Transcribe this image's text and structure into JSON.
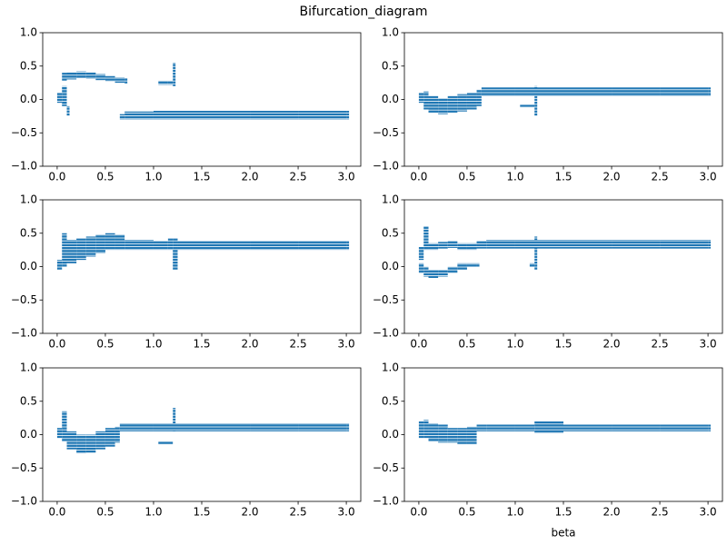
{
  "title": "Bifurcation_diagram",
  "chart_data": [
    {
      "type": "band",
      "color": "#1f77b4",
      "xlim": [
        -0.15,
        3.15
      ],
      "ylim": [
        -1,
        1
      ],
      "xticks": [
        {
          "value": 0,
          "label": "0.0"
        },
        {
          "value": 0.5,
          "label": "0.5"
        },
        {
          "value": 1,
          "label": "1.0"
        },
        {
          "value": 1.5,
          "label": "1.5"
        },
        {
          "value": 2,
          "label": "2.0"
        },
        {
          "value": 2.5,
          "label": "2.5"
        },
        {
          "value": 3,
          "label": "3.0"
        }
      ],
      "yticks": [
        {
          "value": -1,
          "label": "−1.0"
        },
        {
          "value": -0.5,
          "label": "−0.5"
        },
        {
          "value": 0,
          "label": "0.0"
        },
        {
          "value": 0.5,
          "label": "0.5"
        },
        {
          "value": 1,
          "label": "1.0"
        }
      ],
      "bands": [
        {
          "x": [
            0,
            0.05,
            0.1
          ],
          "low": [
            -0.05,
            -0.1,
            -0.25
          ],
          "high": [
            0.1,
            0.2,
            -0.1
          ]
        },
        {
          "x": [
            0.05,
            0.1,
            0.2,
            0.3,
            0.4,
            0.5,
            0.6,
            0.7
          ],
          "low": [
            0.28,
            0.3,
            0.32,
            0.31,
            0.29,
            0.27,
            0.25,
            0.24
          ],
          "high": [
            0.4,
            0.41,
            0.42,
            0.41,
            0.38,
            0.35,
            0.33,
            0.32
          ]
        },
        {
          "x": [
            0.65,
            0.7,
            1,
            1.5,
            2,
            2.5,
            3
          ],
          "low": [
            -0.3,
            -0.3,
            -0.3,
            -0.3,
            -0.3,
            -0.3,
            -0.3
          ],
          "high": [
            -0.22,
            -0.18,
            -0.17,
            -0.17,
            -0.17,
            -0.17,
            -0.17
          ]
        },
        {
          "x": [
            1.05,
            1.15,
            1.2
          ],
          "low": [
            0.22,
            0.22,
            0.2
          ],
          "high": [
            0.28,
            0.28,
            0.55
          ]
        }
      ]
    },
    {
      "type": "band",
      "color": "#1f77b4",
      "xlim": [
        -0.15,
        3.15
      ],
      "ylim": [
        -1,
        1
      ],
      "xticks": [
        {
          "value": 0,
          "label": "0.0"
        },
        {
          "value": 0.5,
          "label": "0.5"
        },
        {
          "value": 1,
          "label": "1.0"
        },
        {
          "value": 1.5,
          "label": "1.5"
        },
        {
          "value": 2,
          "label": "2.0"
        },
        {
          "value": 2.5,
          "label": "2.5"
        },
        {
          "value": 3,
          "label": "3.0"
        }
      ],
      "yticks": [
        {
          "value": -1,
          "label": "−1.0"
        },
        {
          "value": -0.5,
          "label": "−0.5"
        },
        {
          "value": 0,
          "label": "0.0"
        },
        {
          "value": 0.5,
          "label": "0.5"
        },
        {
          "value": 1,
          "label": "1.0"
        }
      ],
      "bands": [
        {
          "x": [
            0,
            0.05,
            0.1,
            0.2,
            0.3,
            0.4,
            0.5,
            0.6,
            0.65,
            1,
            1.5,
            2,
            2.5,
            3
          ],
          "low": [
            -0.05,
            -0.15,
            -0.2,
            -0.22,
            -0.2,
            -0.18,
            -0.15,
            -0.1,
            0.05,
            0.05,
            0.05,
            0.05,
            0.05,
            0.05
          ],
          "high": [
            0.1,
            0.12,
            0.05,
            0.02,
            0.05,
            0.08,
            0.1,
            0.15,
            0.18,
            0.18,
            0.18,
            0.18,
            0.18,
            0.18
          ]
        },
        {
          "x": [
            1.05,
            1.2
          ],
          "low": [
            -0.12,
            -0.25
          ],
          "high": [
            -0.08,
            0.2
          ]
        }
      ]
    },
    {
      "type": "band",
      "color": "#1f77b4",
      "xlim": [
        -0.15,
        3.15
      ],
      "ylim": [
        -1,
        1
      ],
      "xticks": [
        {
          "value": 0,
          "label": "0.0"
        },
        {
          "value": 0.5,
          "label": "0.5"
        },
        {
          "value": 1,
          "label": "1.0"
        },
        {
          "value": 1.5,
          "label": "1.5"
        },
        {
          "value": 2,
          "label": "2.0"
        },
        {
          "value": 2.5,
          "label": "2.5"
        },
        {
          "value": 3,
          "label": "3.0"
        }
      ],
      "yticks": [
        {
          "value": -1,
          "label": "−1.0"
        },
        {
          "value": -0.5,
          "label": "−0.5"
        },
        {
          "value": 0,
          "label": "0.0"
        },
        {
          "value": 0.5,
          "label": "0.5"
        },
        {
          "value": 1,
          "label": "1.0"
        }
      ],
      "bands": [
        {
          "x": [
            0,
            0.05,
            0.1,
            0.2,
            0.3,
            0.4,
            0.5,
            0.6,
            0.7,
            1,
            1.15,
            1.2,
            1.25,
            1.5,
            2,
            2.5,
            3
          ],
          "low": [
            -0.05,
            0,
            0.05,
            0.1,
            0.15,
            0.2,
            0.25,
            0.25,
            0.25,
            0.25,
            0.25,
            -0.05,
            0.25,
            0.25,
            0.25,
            0.25,
            0.25
          ],
          "high": [
            0.1,
            0.5,
            0.4,
            0.42,
            0.45,
            0.48,
            0.5,
            0.48,
            0.4,
            0.38,
            0.42,
            0.42,
            0.38,
            0.38,
            0.38,
            0.38,
            0.38
          ]
        }
      ]
    },
    {
      "type": "band",
      "color": "#1f77b4",
      "xlim": [
        -0.15,
        3.15
      ],
      "ylim": [
        -1,
        1
      ],
      "xticks": [
        {
          "value": 0,
          "label": "0.0"
        },
        {
          "value": 0.5,
          "label": "0.5"
        },
        {
          "value": 1,
          "label": "1.0"
        },
        {
          "value": 1.5,
          "label": "1.5"
        },
        {
          "value": 2,
          "label": "2.0"
        },
        {
          "value": 2.5,
          "label": "2.5"
        },
        {
          "value": 3,
          "label": "3.0"
        }
      ],
      "yticks": [
        {
          "value": -1,
          "label": "−1.0"
        },
        {
          "value": -0.5,
          "label": "−0.5"
        },
        {
          "value": 0,
          "label": "0.0"
        },
        {
          "value": 0.5,
          "label": "0.5"
        },
        {
          "value": 1,
          "label": "1.0"
        }
      ],
      "bands": [
        {
          "x": [
            0,
            0.05,
            0.1,
            0.2,
            0.3,
            0.4,
            0.5,
            0.6,
            0.7,
            1,
            1.5,
            2,
            2.5,
            3
          ],
          "low": [
            0.1,
            0.25,
            0.25,
            0.27,
            0.28,
            0.25,
            0.25,
            0.27,
            0.27,
            0.27,
            0.27,
            0.27,
            0.27,
            0.27
          ],
          "high": [
            0.3,
            0.6,
            0.35,
            0.37,
            0.38,
            0.35,
            0.35,
            0.38,
            0.4,
            0.4,
            0.4,
            0.4,
            0.4,
            0.4
          ]
        },
        {
          "x": [
            0,
            0.05,
            0.1,
            0.2,
            0.3,
            0.4,
            0.5,
            0.6
          ],
          "low": [
            -0.1,
            -0.15,
            -0.17,
            -0.15,
            -0.1,
            -0.05,
            0,
            0
          ],
          "high": [
            0.05,
            0,
            -0.05,
            -0.05,
            0,
            0.05,
            0.05,
            0.05
          ]
        },
        {
          "x": [
            1.15,
            1.2
          ],
          "low": [
            0,
            -0.05
          ],
          "high": [
            0.05,
            0.45
          ]
        }
      ]
    },
    {
      "type": "band",
      "color": "#1f77b4",
      "xlim": [
        -0.15,
        3.15
      ],
      "ylim": [
        -1,
        1
      ],
      "xticks": [
        {
          "value": 0,
          "label": "0.0"
        },
        {
          "value": 0.5,
          "label": "0.5"
        },
        {
          "value": 1,
          "label": "1.0"
        },
        {
          "value": 1.5,
          "label": "1.5"
        },
        {
          "value": 2,
          "label": "2.0"
        },
        {
          "value": 2.5,
          "label": "2.5"
        },
        {
          "value": 3,
          "label": "3.0"
        }
      ],
      "yticks": [
        {
          "value": -1,
          "label": "−1.0"
        },
        {
          "value": -0.5,
          "label": "−0.5"
        },
        {
          "value": 0,
          "label": "0.0"
        },
        {
          "value": 0.5,
          "label": "0.5"
        },
        {
          "value": 1,
          "label": "1.0"
        }
      ],
      "bands": [
        {
          "x": [
            0,
            0.05,
            0.1,
            0.2,
            0.3,
            0.4,
            0.5,
            0.6,
            0.65,
            1,
            1.5,
            2,
            2.5,
            3
          ],
          "low": [
            -0.05,
            -0.1,
            -0.22,
            -0.28,
            -0.27,
            -0.22,
            -0.18,
            -0.12,
            0.05,
            0.05,
            0.05,
            0.05,
            0.05,
            0.05
          ],
          "high": [
            0.1,
            0.35,
            0.05,
            0,
            0,
            0.05,
            0.1,
            0.12,
            0.17,
            0.17,
            0.17,
            0.17,
            0.17,
            0.17
          ]
        },
        {
          "x": [
            1.05,
            1.2
          ],
          "low": [
            -0.15,
            0.05
          ],
          "high": [
            -0.1,
            0.4
          ]
        }
      ]
    },
    {
      "type": "band",
      "color": "#1f77b4",
      "xlim": [
        -0.15,
        3.15
      ],
      "ylim": [
        -1,
        1
      ],
      "xlabel": "beta",
      "xticks": [
        {
          "value": 0,
          "label": "0.0"
        },
        {
          "value": 0.5,
          "label": "0.5"
        },
        {
          "value": 1,
          "label": "1.0"
        },
        {
          "value": 1.5,
          "label": "1.5"
        },
        {
          "value": 2,
          "label": "2.0"
        },
        {
          "value": 2.5,
          "label": "2.5"
        },
        {
          "value": 3,
          "label": "3.0"
        }
      ],
      "yticks": [
        {
          "value": -1,
          "label": "−1.0"
        },
        {
          "value": -0.5,
          "label": "−0.5"
        },
        {
          "value": 0,
          "label": "0.0"
        },
        {
          "value": 0.5,
          "label": "0.5"
        },
        {
          "value": 1,
          "label": "1.0"
        }
      ],
      "bands": [
        {
          "x": [
            0,
            0.05,
            0.1,
            0.2,
            0.3,
            0.4,
            0.5,
            0.6,
            0.7,
            1,
            1.2,
            1.5,
            2,
            2.5,
            3
          ],
          "low": [
            -0.05,
            -0.05,
            -0.1,
            -0.12,
            -0.12,
            -0.15,
            -0.15,
            0.05,
            0.05,
            0.05,
            0.02,
            0.05,
            0.05,
            0.05,
            0.05
          ],
          "high": [
            0.2,
            0.22,
            0.17,
            0.15,
            0.1,
            0.1,
            0.12,
            0.15,
            0.15,
            0.15,
            0.2,
            0.15,
            0.15,
            0.15,
            0.15
          ]
        }
      ]
    }
  ]
}
